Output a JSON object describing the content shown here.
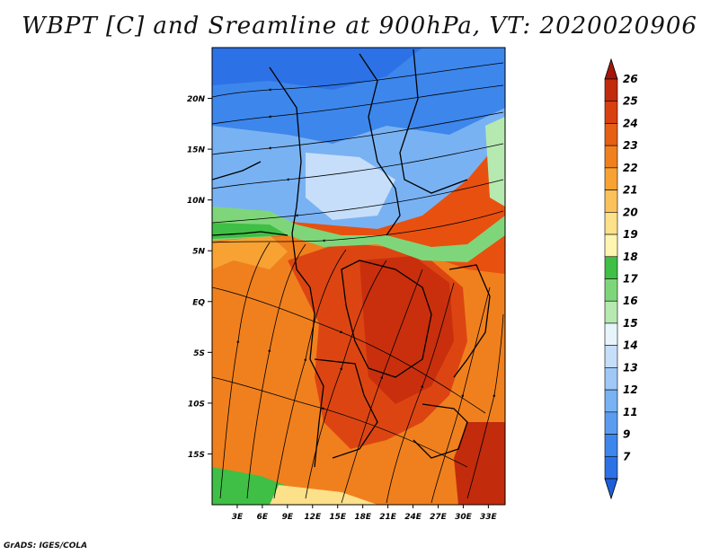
{
  "title": "WBPT [C] and Sreamline at 900hPa, VT: 2020020906",
  "credit": "GrADS: IGES/COLA",
  "map": {
    "lon_range": [
      0,
      35
    ],
    "lat_range": [
      -20,
      25
    ],
    "lat_ticks": [
      {
        "value": 20,
        "label": "20N"
      },
      {
        "value": 15,
        "label": "15N"
      },
      {
        "value": 10,
        "label": "10N"
      },
      {
        "value": 5,
        "label": "5N"
      },
      {
        "value": 0,
        "label": "EQ"
      },
      {
        "value": -5,
        "label": "5S"
      },
      {
        "value": -10,
        "label": "10S"
      },
      {
        "value": -15,
        "label": "15S"
      }
    ],
    "lon_ticks": [
      {
        "value": 3,
        "label": "3E"
      },
      {
        "value": 6,
        "label": "6E"
      },
      {
        "value": 9,
        "label": "9E"
      },
      {
        "value": 12,
        "label": "12E"
      },
      {
        "value": 15,
        "label": "15E"
      },
      {
        "value": 18,
        "label": "18E"
      },
      {
        "value": 21,
        "label": "21E"
      },
      {
        "value": 24,
        "label": "24E"
      },
      {
        "value": 27,
        "label": "27E"
      },
      {
        "value": 30,
        "label": "30E"
      },
      {
        "value": 33,
        "label": "33E"
      }
    ]
  },
  "colorbar": {
    "levels": [
      "7",
      "9",
      "11",
      "12",
      "13",
      "14",
      "15",
      "16",
      "17",
      "18",
      "19",
      "20",
      "21",
      "22",
      "23",
      "24",
      "25",
      "26"
    ],
    "colors": [
      "#1e5fd8",
      "#2c72e6",
      "#3d86ec",
      "#5a9cf0",
      "#79b2f3",
      "#9fc8f7",
      "#c6def9",
      "#e7f4fc",
      "#b6e9b0",
      "#7fd67a",
      "#3fbf45",
      "#fdf5b0",
      "#fde08a",
      "#fbc15c",
      "#f7a233",
      "#f0801d",
      "#e65f15",
      "#d9400f",
      "#c22b0c",
      "#a5150a"
    ]
  }
}
